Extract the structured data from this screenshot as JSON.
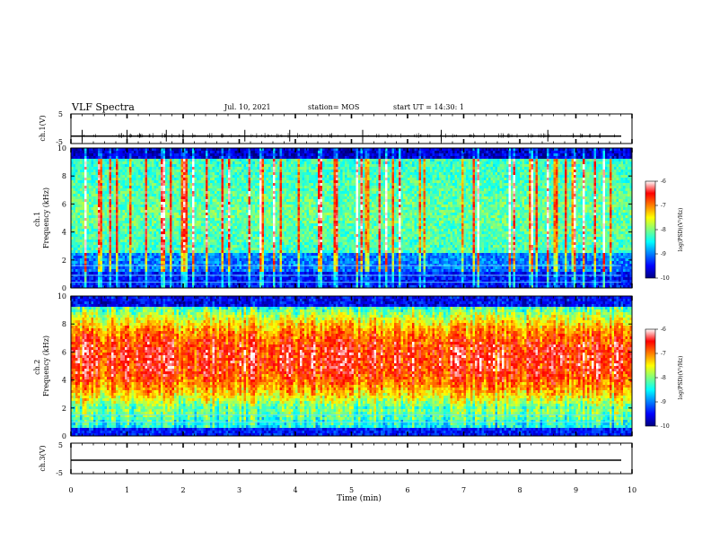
{
  "header": {
    "title": "VLF Spectra",
    "date": "Jul. 10, 2021",
    "station": "station= MOS",
    "start": "start UT = 14:30: 1"
  },
  "chart_data": [
    {
      "type": "line",
      "name": "ch.1 waveform",
      "ylabel": "ch.1(V)",
      "ylim": [
        -5,
        5
      ],
      "yticks": [
        "5",
        "-5"
      ],
      "baseline": -2.5,
      "spike_minutes": [
        0.2,
        1.0,
        1.7,
        2.0,
        3.1,
        3.9,
        5.2,
        6.6,
        8.5
      ]
    },
    {
      "type": "heatmap",
      "name": "ch.1 spectrogram",
      "ylabel": "ch.1 Frequency (kHz)",
      "ylim": [
        0,
        10
      ],
      "yticks": [
        "0",
        "2",
        "4",
        "6",
        "8",
        "10"
      ],
      "xlim": [
        0,
        10
      ],
      "colorbar": {
        "label": "log(PSD)(V²/Hz)",
        "range": [
          -10,
          -6
        ],
        "ticks": [
          "-6",
          "-7",
          "-8",
          "-9",
          "-10"
        ]
      }
    },
    {
      "type": "heatmap",
      "name": "ch.2 spectrogram",
      "ylabel": "ch.2 Frequency (kHz)",
      "ylim": [
        0,
        10
      ],
      "yticks": [
        "0",
        "2",
        "4",
        "6",
        "8",
        "10"
      ],
      "xlim": [
        0,
        10
      ],
      "colorbar": {
        "label": "log(PSD)(V²/Hz)",
        "range": [
          -10,
          -6
        ],
        "ticks": [
          "-6",
          "-7",
          "-8",
          "-9",
          "-10"
        ]
      }
    },
    {
      "type": "line",
      "name": "ch.3 waveform",
      "ylabel": "ch.3(V)",
      "ylim": [
        -5,
        5
      ],
      "yticks": [
        "5",
        "-5"
      ],
      "baseline": -2.5
    }
  ],
  "xaxis": {
    "label": "Time (min)",
    "range": [
      0,
      10
    ],
    "ticks": [
      "0",
      "1",
      "2",
      "3",
      "4",
      "5",
      "6",
      "7",
      "8",
      "9",
      "10"
    ]
  },
  "colors": {
    "jet": [
      "#00007f",
      "#0000ff",
      "#007fff",
      "#00ffff",
      "#7fff7f",
      "#ffff00",
      "#ff7f00",
      "#ff0000",
      "#ffffff"
    ]
  }
}
